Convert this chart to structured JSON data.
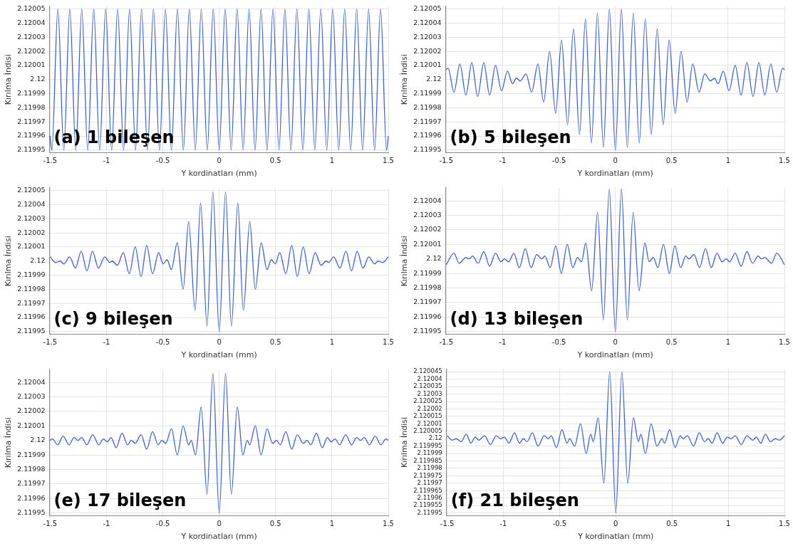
{
  "chart_data": [
    {
      "type": "line",
      "xlabel": "Y kordinatları (mm)",
      "ylabel": "Kırılma İndisi",
      "annotations": [
        "(a) 1 bileşen"
      ],
      "grid": true,
      "marker": "none",
      "xlim": [
        -1.505,
        1.505
      ],
      "xticks": [
        -1.5,
        -1,
        -0.5,
        0,
        0.5,
        1,
        1.5
      ],
      "ylim": [
        2.119948,
        2.120052
      ],
      "yticks": [
        2.11995,
        2.11996,
        2.11997,
        2.11998,
        2.11999,
        2.12,
        2.12001,
        2.12002,
        2.12003,
        2.12004,
        2.12005
      ],
      "series": [
        {
          "color": "#3a5cf0",
          "x": [
            -1.5,
            -1.484,
            -1.431,
            -1.378,
            -1.325,
            -1.272,
            -1.219,
            -1.166,
            -1.113,
            -1.06,
            -1.007,
            -0.954,
            -0.901,
            -0.848,
            -0.795,
            -0.742,
            -0.689,
            -0.636,
            -0.583,
            -0.53,
            -0.477,
            -0.424,
            -0.371,
            -0.318,
            -0.265,
            -0.212,
            -0.159,
            -0.106,
            -0.053,
            0,
            0.053,
            0.106,
            0.159,
            0.212,
            0.265,
            0.318,
            0.371,
            0.424,
            0.477,
            0.53,
            0.583,
            0.636,
            0.689,
            0.742,
            0.795,
            0.848,
            0.901,
            0.954,
            1.007,
            1.06,
            1.113,
            1.166,
            1.219,
            1.272,
            1.325,
            1.378,
            1.431,
            1.484,
            1.5
          ],
          "values": [
            2.11996,
            2.11995,
            2.12005,
            2.11995,
            2.12005,
            2.11995,
            2.12005,
            2.11995,
            2.12005,
            2.11995,
            2.12005,
            2.11995,
            2.12005,
            2.11995,
            2.12005,
            2.11995,
            2.12005,
            2.11995,
            2.12005,
            2.11995,
            2.12005,
            2.11995,
            2.12005,
            2.11995,
            2.12005,
            2.11995,
            2.12005,
            2.11995,
            2.12005,
            2.11995,
            2.12005,
            2.11995,
            2.12005,
            2.11995,
            2.12005,
            2.11995,
            2.12005,
            2.11995,
            2.12005,
            2.11995,
            2.12005,
            2.11995,
            2.12005,
            2.11995,
            2.12005,
            2.11995,
            2.12005,
            2.11995,
            2.12005,
            2.11995,
            2.12005,
            2.11995,
            2.12005,
            2.11995,
            2.12005,
            2.11995,
            2.12005,
            2.11995,
            2.11996
          ]
        }
      ]
    },
    {
      "type": "line",
      "xlabel": "Y kordinatları (mm)",
      "ylabel": "Kırılma İndisi",
      "annotations": [
        "(b) 5 bileşen"
      ],
      "grid": true,
      "marker": "none",
      "xlim": [
        -1.505,
        1.505
      ],
      "xticks": [
        -1.5,
        -1,
        -0.5,
        0,
        0.5,
        1,
        1.5
      ],
      "ylim": [
        2.119948,
        2.120052
      ],
      "yticks": [
        2.11995,
        2.11996,
        2.11997,
        2.11998,
        2.11999,
        2.12,
        2.12001,
        2.12002,
        2.12003,
        2.12004,
        2.12005
      ],
      "series": [
        {
          "color": "#3a5cf0",
          "x": [
            -1.5,
            -1.483,
            -1.431,
            -1.379,
            -1.325,
            -1.273,
            -1.221,
            -1.167,
            -1.115,
            -1.063,
            -1.009,
            -0.957,
            -0.912,
            -0.878,
            -0.844,
            -0.792,
            -0.743,
            -0.686,
            -0.636,
            -0.583,
            -0.53,
            -0.477,
            -0.424,
            -0.371,
            -0.318,
            -0.265,
            -0.212,
            -0.159,
            -0.106,
            -0.053,
            0,
            0.053,
            0.106,
            0.159,
            0.212,
            0.265,
            0.318,
            0.371,
            0.424,
            0.477,
            0.53,
            0.583,
            0.636,
            0.686,
            0.743,
            0.792,
            0.844,
            0.878,
            0.912,
            0.957,
            1.009,
            1.063,
            1.115,
            1.167,
            1.221,
            1.273,
            1.325,
            1.379,
            1.431,
            1.483,
            1.5
          ],
          "values": [
            2.120007,
            2.120008,
            2.119991,
            2.120011,
            2.119989,
            2.120012,
            2.119988,
            2.120012,
            2.119989,
            2.12001,
            2.119992,
            2.120006,
            2.119997,
            2.120001,
            2.119999,
            2.120004,
            2.119991,
            2.120011,
            2.119984,
            2.12002,
            2.119976,
            2.120028,
            2.119968,
            2.120036,
            2.119961,
            2.120043,
            2.119955,
            2.120047,
            2.119952,
            2.12005,
            2.11995,
            2.12005,
            2.119952,
            2.120047,
            2.119955,
            2.120043,
            2.119961,
            2.120036,
            2.119968,
            2.120028,
            2.119976,
            2.12002,
            2.119984,
            2.120011,
            2.119991,
            2.120004,
            2.119999,
            2.120001,
            2.119997,
            2.120006,
            2.119992,
            2.12001,
            2.119989,
            2.120012,
            2.119988,
            2.120012,
            2.119989,
            2.120011,
            2.119991,
            2.120008,
            2.120007
          ]
        }
      ]
    },
    {
      "type": "line",
      "xlabel": "Y kordinatları (mm)",
      "ylabel": "Kırılma İndisi",
      "annotations": [
        "(c) 9 bileşen"
      ],
      "grid": true,
      "marker": "none",
      "xlim": [
        -1.505,
        1.505
      ],
      "xticks": [
        -1.5,
        -1,
        -0.5,
        0,
        0.5,
        1,
        1.5
      ],
      "ylim": [
        2.119948,
        2.120052
      ],
      "yticks": [
        2.11995,
        2.11996,
        2.11997,
        2.11998,
        2.11999,
        2.12,
        2.12001,
        2.12002,
        2.12003,
        2.12004,
        2.12005
      ],
      "series": [
        {
          "color": "#3a5cf0",
          "x": [
            -1.5,
            -1.449,
            -1.411,
            -1.377,
            -1.327,
            -1.275,
            -1.224,
            -1.173,
            -1.124,
            -1.071,
            -1.016,
            -0.97,
            -0.948,
            -0.903,
            -0.851,
            -0.797,
            -0.745,
            -0.693,
            -0.643,
            -0.591,
            -0.537,
            -0.497,
            -0.463,
            -0.424,
            -0.372,
            -0.32,
            -0.271,
            -0.214,
            -0.165,
            -0.108,
            -0.056,
            0,
            0.056,
            0.108,
            0.165,
            0.214,
            0.271,
            0.32,
            0.372,
            0.424,
            0.463,
            0.497,
            0.537,
            0.591,
            0.643,
            0.693,
            0.745,
            0.797,
            0.851,
            0.903,
            0.948,
            0.97,
            1.016,
            1.071,
            1.124,
            1.173,
            1.224,
            1.275,
            1.327,
            1.377,
            1.411,
            1.449,
            1.5
          ],
          "values": [
            2.120003,
            2.119999,
            2.12,
            2.119998,
            2.120003,
            2.119995,
            2.120007,
            2.119993,
            2.120007,
            2.119995,
            2.120003,
            2.119999,
            2.12,
            2.119997,
            2.120006,
            2.119991,
            2.12001,
            2.119989,
            2.120011,
            2.119991,
            2.120006,
            2.119998,
            2.120001,
            2.119994,
            2.120013,
            2.11998,
            2.120028,
            2.119965,
            2.120041,
            2.119954,
            2.120049,
            2.11995,
            2.120049,
            2.119954,
            2.120041,
            2.119965,
            2.120028,
            2.11998,
            2.120013,
            2.119994,
            2.120001,
            2.119998,
            2.120006,
            2.119991,
            2.120011,
            2.119989,
            2.12001,
            2.119991,
            2.120006,
            2.119997,
            2.12,
            2.119999,
            2.120003,
            2.119995,
            2.120007,
            2.119993,
            2.120007,
            2.119995,
            2.120003,
            2.119998,
            2.12,
            2.119999,
            2.120003
          ]
        }
      ]
    },
    {
      "type": "line",
      "xlabel": "Y kordinatları (mm)",
      "ylabel": "Kırılma İndisi",
      "annotations": [
        "(d) 13 bileşen"
      ],
      "grid": true,
      "marker": "none",
      "xlim": [
        -1.505,
        1.505
      ],
      "xticks": [
        -1.5,
        -1,
        -0.5,
        0,
        0.5,
        1,
        1.5
      ],
      "ylim": [
        2.119948,
        2.120049
      ],
      "yticks": [
        2.11995,
        2.11996,
        2.11997,
        2.11998,
        2.11999,
        2.12,
        2.12001,
        2.12002,
        2.12003,
        2.12004
      ],
      "series": [
        {
          "color": "#3a5cf0",
          "x": [
            -1.5,
            -1.431,
            -1.386,
            -1.325,
            -1.296,
            -1.266,
            -1.217,
            -1.167,
            -1.115,
            -1.063,
            -1.014,
            -0.984,
            -0.946,
            -0.901,
            -0.851,
            -0.799,
            -0.747,
            -0.698,
            -0.652,
            -0.625,
            -0.578,
            -0.528,
            -0.479,
            -0.427,
            -0.377,
            -0.336,
            -0.3,
            -0.262,
            -0.21,
            -0.158,
            -0.106,
            -0.054,
            0,
            0.054,
            0.106,
            0.158,
            0.21,
            0.262,
            0.3,
            0.336,
            0.377,
            0.427,
            0.479,
            0.528,
            0.578,
            0.625,
            0.652,
            0.698,
            0.747,
            0.799,
            0.851,
            0.901,
            0.946,
            0.984,
            1.014,
            1.063,
            1.115,
            1.167,
            1.217,
            1.266,
            1.296,
            1.325,
            1.386,
            1.431,
            1.5
          ],
          "values": [
            2.119996,
            2.120004,
            2.119997,
            2.120001,
            2.12,
            2.120002,
            2.119997,
            2.120005,
            2.119995,
            2.120004,
            2.119998,
            2.12,
            2.119998,
            2.120004,
            2.119994,
            2.120007,
            2.119994,
            2.120003,
            2.12,
            2.120002,
            2.119994,
            2.120009,
            2.11999,
            2.12001,
            2.119994,
            2.120001,
            2.119998,
            2.120011,
            2.119978,
            2.120032,
            2.119958,
            2.120048,
            2.11995,
            2.120048,
            2.119958,
            2.120032,
            2.119978,
            2.120011,
            2.119998,
            2.120001,
            2.119994,
            2.12001,
            2.11999,
            2.120009,
            2.119994,
            2.120002,
            2.12,
            2.120003,
            2.119994,
            2.120007,
            2.119994,
            2.120004,
            2.119998,
            2.12,
            2.119998,
            2.120004,
            2.119995,
            2.120005,
            2.119997,
            2.120002,
            2.12,
            2.120001,
            2.119997,
            2.120004,
            2.119996
          ]
        }
      ]
    },
    {
      "type": "line",
      "xlabel": "Y kordinatları (mm)",
      "ylabel": "Kırılma İndisi",
      "annotations": [
        "(e) 17 bileşen"
      ],
      "grid": true,
      "marker": "none",
      "xlim": [
        -1.505,
        1.505
      ],
      "xticks": [
        -1.5,
        -1,
        -0.5,
        0,
        0.5,
        1,
        1.5
      ],
      "ylim": [
        2.119948,
        2.120049
      ],
      "yticks": [
        2.11995,
        2.11996,
        2.11997,
        2.11998,
        2.11999,
        2.12,
        2.12001,
        2.12002,
        2.12003,
        2.12004
      ],
      "series": [
        {
          "color": "#3a5cf0",
          "x": [
            -1.5,
            -1.479,
            -1.433,
            -1.384,
            -1.332,
            -1.287,
            -1.253,
            -1.219,
            -1.174,
            -1.122,
            -1.068,
            -1.027,
            -0.993,
            -0.959,
            -0.914,
            -0.862,
            -0.813,
            -0.779,
            -0.745,
            -0.693,
            -0.643,
            -0.591,
            -0.542,
            -0.508,
            -0.474,
            -0.424,
            -0.372,
            -0.32,
            -0.271,
            -0.248,
            -0.21,
            -0.16,
            -0.108,
            -0.056,
            0,
            0.056,
            0.108,
            0.16,
            0.21,
            0.248,
            0.271,
            0.32,
            0.372,
            0.424,
            0.474,
            0.508,
            0.542,
            0.591,
            0.643,
            0.693,
            0.745,
            0.779,
            0.813,
            0.862,
            0.914,
            0.959,
            0.993,
            1.027,
            1.068,
            1.122,
            1.174,
            1.219,
            1.253,
            1.287,
            1.332,
            1.384,
            1.433,
            1.479,
            1.5
          ],
          "values": [
            2.12,
            2.120001,
            2.119997,
            2.120003,
            2.119997,
            2.120002,
            2.12,
            2.120002,
            2.119997,
            2.120004,
            2.119997,
            2.120001,
            2.119999,
            2.120002,
            2.119995,
            2.120005,
            2.119997,
            2.12,
            2.119998,
            2.120004,
            2.119994,
            2.120006,
            2.119997,
            2.12,
            2.119998,
            2.120008,
            2.11999,
            2.12001,
            2.119997,
            2.12,
            2.11999,
            2.120023,
            2.119963,
            2.120046,
            2.11995,
            2.120046,
            2.119963,
            2.120023,
            2.11999,
            2.12,
            2.119997,
            2.12001,
            2.11999,
            2.120008,
            2.119998,
            2.12,
            2.119997,
            2.120006,
            2.119994,
            2.120004,
            2.119998,
            2.12,
            2.119997,
            2.120005,
            2.119995,
            2.120002,
            2.119999,
            2.120001,
            2.119997,
            2.120004,
            2.119997,
            2.120002,
            2.12,
            2.120002,
            2.119997,
            2.120003,
            2.119997,
            2.120001,
            2.12
          ]
        }
      ]
    },
    {
      "type": "line",
      "xlabel": "Y kordinatları (mm)",
      "ylabel": "Kırılma İndisi",
      "annotations": [
        "(f) 21 bileşen"
      ],
      "grid": true,
      "marker": "none",
      "xlim": [
        -1.505,
        1.505
      ],
      "xticks": [
        -1.5,
        -1,
        -0.5,
        0,
        0.5,
        1,
        1.5
      ],
      "ylim": [
        2.119948,
        2.120047
      ],
      "yticks": [
        2.11995,
        2.119955,
        2.11996,
        2.119965,
        2.11997,
        2.119975,
        2.11998,
        2.119985,
        2.11999,
        2.119995,
        2.12,
        2.120005,
        2.12001,
        2.120015,
        2.12002,
        2.120025,
        2.12003,
        2.120035,
        2.12004,
        2.120045
      ],
      "series": [
        {
          "color": "#3a5cf0",
          "x": [
            -1.5,
            -1.454,
            -1.42,
            -1.375,
            -1.33,
            -1.289,
            -1.25,
            -1.217,
            -1.167,
            -1.115,
            -1.063,
            -1.025,
            -0.991,
            -0.95,
            -0.901,
            -0.856,
            -0.822,
            -0.788,
            -0.743,
            -0.691,
            -0.637,
            -0.6,
            -0.573,
            -0.528,
            -0.479,
            -0.433,
            -0.411,
            -0.366,
            -0.314,
            -0.264,
            -0.223,
            -0.201,
            -0.156,
            -0.106,
            -0.054,
            0,
            0.054,
            0.106,
            0.156,
            0.201,
            0.223,
            0.264,
            0.314,
            0.366,
            0.411,
            0.433,
            0.479,
            0.528,
            0.573,
            0.6,
            0.637,
            0.691,
            0.743,
            0.788,
            0.822,
            0.856,
            0.901,
            0.95,
            0.991,
            1.025,
            1.063,
            1.115,
            1.167,
            1.217,
            1.25,
            1.289,
            1.33,
            1.375,
            1.42,
            1.454,
            1.5
          ],
          "values": [
            2.120002,
            2.119999,
            2.12,
            2.119998,
            2.120003,
            2.119997,
            2.120001,
            2.119999,
            2.120002,
            2.119996,
            2.120002,
            2.12,
            2.120001,
            2.119997,
            2.120004,
            2.119997,
            2.12,
            2.119998,
            2.120004,
            2.119995,
            2.120002,
            2.12,
            2.120002,
            2.119994,
            2.120006,
            2.119997,
            2.12,
            2.119995,
            2.12001,
            2.11999,
            2.120003,
            2.119998,
            2.120014,
            2.11997,
            2.120045,
            2.11995,
            2.120045,
            2.11997,
            2.120014,
            2.119998,
            2.120003,
            2.11999,
            2.12001,
            2.119995,
            2.12,
            2.119997,
            2.120006,
            2.119994,
            2.120002,
            2.12,
            2.120002,
            2.119995,
            2.120004,
            2.119998,
            2.12,
            2.119997,
            2.120004,
            2.119997,
            2.120001,
            2.12,
            2.120002,
            2.119996,
            2.120002,
            2.119999,
            2.120001,
            2.119997,
            2.120003,
            2.119998,
            2.12,
            2.119999,
            2.120002
          ]
        }
      ]
    }
  ]
}
